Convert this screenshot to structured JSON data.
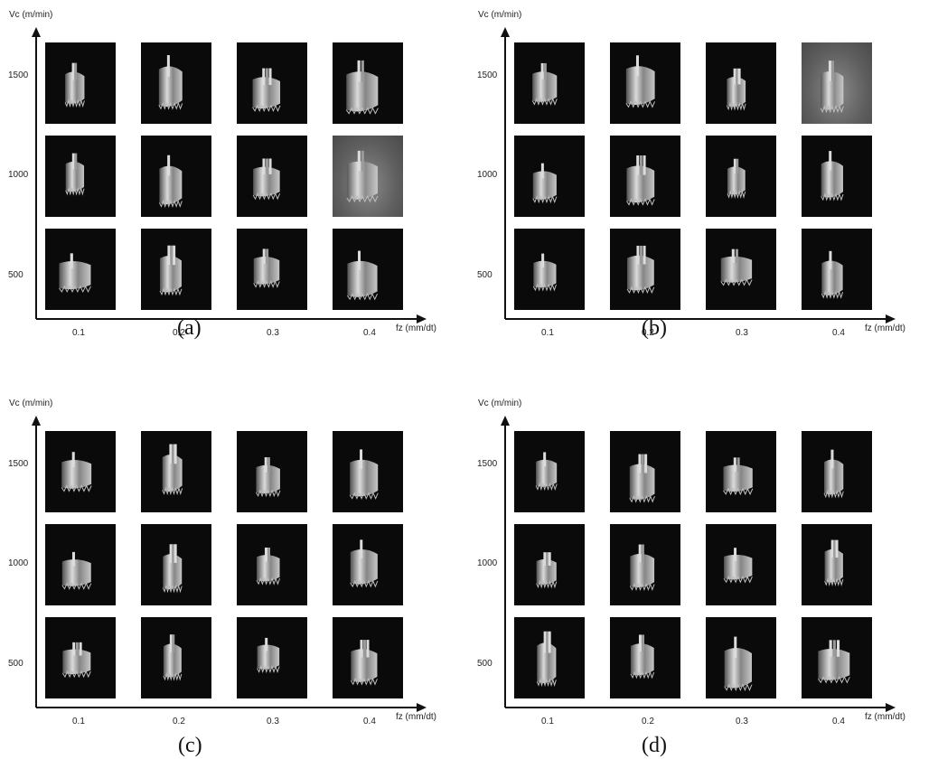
{
  "panels": [
    {
      "caption": "(a)",
      "y_axis_title": "Vc (m/min)",
      "x_axis_title": "fz (mm/dt)",
      "y_ticks": [
        "1500",
        "1000",
        "500"
      ],
      "x_ticks": [
        "0.1",
        "0.2",
        "0.3",
        "0.4"
      ],
      "grey_cells": [
        [
          1,
          3
        ]
      ]
    },
    {
      "caption": "(b)",
      "y_axis_title": "Vc (m/min)",
      "x_axis_title": "fz (mm/dt)",
      "y_ticks": [
        "1500",
        "1000",
        "500"
      ],
      "x_ticks": [
        "0.1",
        "0.2",
        "0.3",
        "0.4"
      ],
      "grey_cells": [
        [
          0,
          3
        ]
      ]
    },
    {
      "caption": "(c)",
      "y_axis_title": "Vc (m/min)",
      "x_axis_title": "fz (mm/dt)",
      "y_ticks": [
        "1500",
        "1000",
        "500"
      ],
      "x_ticks": [
        "0.1",
        "0.2",
        "0.3",
        "0.4"
      ],
      "grey_cells": []
    },
    {
      "caption": "(d)",
      "y_axis_title": "Vc (m/min)",
      "x_axis_title": "fz (mm/dt)",
      "y_ticks": [
        "1500",
        "1000",
        "500"
      ],
      "x_ticks": [
        "0.1",
        "0.2",
        "0.3",
        "0.4"
      ],
      "grey_cells": []
    }
  ],
  "colors": {
    "photo_background": "#0a0a0a",
    "chip_metal": "#c8c8c8",
    "axis": "#111111"
  }
}
